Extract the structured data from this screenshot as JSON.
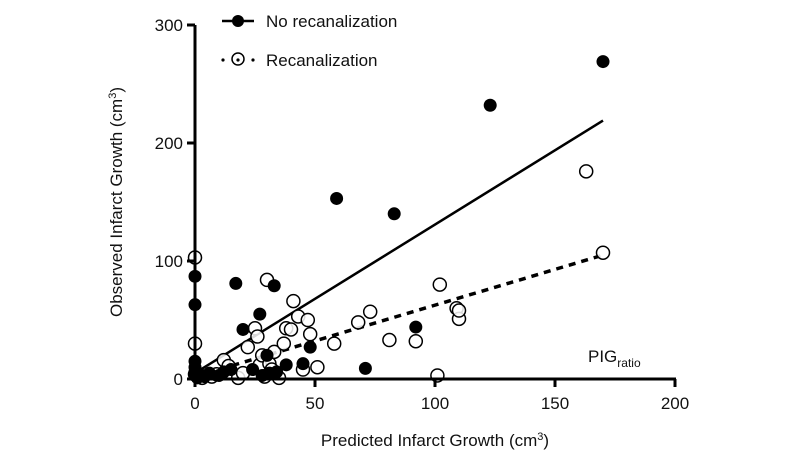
{
  "chart_data": {
    "type": "scatter",
    "title": "",
    "xlabel": "Predicted Infarct Growth (cm",
    "xlabel_sup": "3",
    "xlabel_end": ")",
    "ylabel": "Observed Infarct Growth (cm",
    "ylabel_sup": "3",
    "ylabel_end": ")",
    "xlim": [
      0,
      200
    ],
    "ylim": [
      0,
      300
    ],
    "x_ticks": [
      0,
      50,
      100,
      150,
      200
    ],
    "y_ticks": [
      0,
      100,
      200,
      300
    ],
    "x_tick_labels": [
      "0",
      "50",
      "100",
      "150",
      "200"
    ],
    "y_tick_labels": [
      "0",
      "100",
      "200",
      "300"
    ],
    "grid": false,
    "legend_position": "top-left",
    "annotation": {
      "text": "PIG",
      "subscript": "ratio",
      "position": "bottom-right"
    },
    "series": [
      {
        "name": "No recanalization",
        "marker": "filled-circle",
        "line": "solid",
        "color": "#000000",
        "fit_line": {
          "x": [
            0,
            170
          ],
          "y": [
            5,
            219
          ]
        },
        "points": [
          [
            0,
            87
          ],
          [
            0,
            63
          ],
          [
            0,
            15
          ],
          [
            0,
            10
          ],
          [
            0,
            6
          ],
          [
            0,
            3
          ],
          [
            1,
            1
          ],
          [
            2,
            4
          ],
          [
            4,
            2
          ],
          [
            6,
            5
          ],
          [
            10,
            3
          ],
          [
            12,
            6
          ],
          [
            15,
            8
          ],
          [
            17,
            81
          ],
          [
            20,
            42
          ],
          [
            24,
            8
          ],
          [
            27,
            55
          ],
          [
            28,
            3
          ],
          [
            30,
            20
          ],
          [
            31,
            5
          ],
          [
            33,
            79
          ],
          [
            34,
            6
          ],
          [
            38,
            12
          ],
          [
            45,
            13
          ],
          [
            48,
            27
          ],
          [
            59,
            153
          ],
          [
            71,
            9
          ],
          [
            83,
            140
          ],
          [
            92,
            44
          ],
          [
            123,
            232
          ],
          [
            170,
            269
          ]
        ]
      },
      {
        "name": "Recanalization",
        "marker": "open-circle",
        "line": "dashed",
        "color": "#000000",
        "fit_line": {
          "x": [
            0,
            170
          ],
          "y": [
            2,
            105
          ]
        },
        "points": [
          [
            0,
            103
          ],
          [
            0,
            30
          ],
          [
            0,
            4
          ],
          [
            3,
            1
          ],
          [
            7,
            2
          ],
          [
            9,
            4
          ],
          [
            12,
            16
          ],
          [
            14,
            11
          ],
          [
            18,
            1
          ],
          [
            20,
            5
          ],
          [
            22,
            27
          ],
          [
            25,
            43
          ],
          [
            26,
            36
          ],
          [
            27,
            12
          ],
          [
            28,
            20
          ],
          [
            29,
            2
          ],
          [
            30,
            84
          ],
          [
            31,
            13
          ],
          [
            32,
            8
          ],
          [
            33,
            23
          ],
          [
            35,
            1
          ],
          [
            37,
            30
          ],
          [
            38,
            43
          ],
          [
            40,
            42
          ],
          [
            41,
            66
          ],
          [
            43,
            53
          ],
          [
            45,
            8
          ],
          [
            47,
            50
          ],
          [
            48,
            38
          ],
          [
            51,
            10
          ],
          [
            58,
            30
          ],
          [
            68,
            48
          ],
          [
            73,
            57
          ],
          [
            81,
            33
          ],
          [
            92,
            32
          ],
          [
            101,
            3
          ],
          [
            102,
            80
          ],
          [
            109,
            60
          ],
          [
            110,
            51
          ],
          [
            110,
            58
          ],
          [
            163,
            176
          ],
          [
            170,
            107
          ]
        ]
      }
    ]
  }
}
